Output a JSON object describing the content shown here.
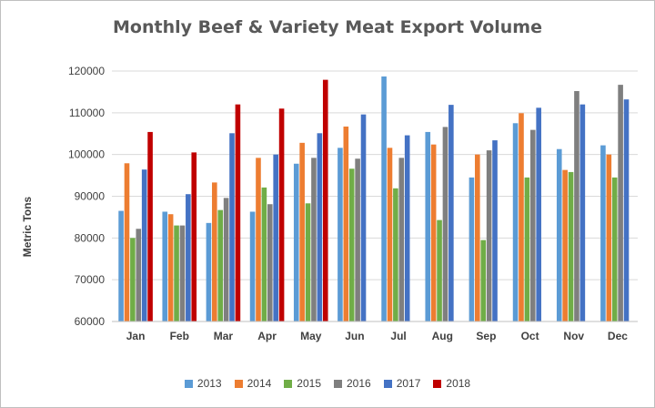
{
  "chart_data": {
    "type": "bar",
    "title": "Monthly Beef & Variety Meat Export Volume",
    "xlabel": "",
    "ylabel": "Metric Tons",
    "ylim": [
      60000,
      120000
    ],
    "yticks": [
      60000,
      70000,
      80000,
      90000,
      100000,
      110000,
      120000
    ],
    "grid": true,
    "legend_position": "bottom",
    "categories": [
      "Jan",
      "Feb",
      "Mar",
      "Apr",
      "May",
      "Jun",
      "Jul",
      "Aug",
      "Sep",
      "Oct",
      "Nov",
      "Dec"
    ],
    "series": [
      {
        "name": "2013",
        "color": "#5b9bd5",
        "values": [
          86500,
          86300,
          83600,
          86300,
          97800,
          101600,
          118700,
          105400,
          94500,
          107500,
          101300,
          102200
        ]
      },
      {
        "name": "2014",
        "color": "#ed7d31",
        "values": [
          97900,
          85700,
          93300,
          99200,
          102800,
          106700,
          101600,
          102400,
          100000,
          109900,
          96300,
          100000
        ]
      },
      {
        "name": "2015",
        "color": "#70ad47",
        "values": [
          80000,
          83000,
          86700,
          92100,
          88300,
          96600,
          91900,
          84300,
          79500,
          94500,
          95800,
          94500
        ]
      },
      {
        "name": "2016",
        "color": "#7f7f7f",
        "values": [
          82200,
          83000,
          89600,
          88100,
          99200,
          99000,
          99200,
          106600,
          101000,
          105900,
          115200,
          116700
        ]
      },
      {
        "name": "2017",
        "color": "#4472c4",
        "values": [
          96400,
          90500,
          105100,
          100000,
          105100,
          109600,
          104600,
          111900,
          103400,
          111200,
          112000,
          113200
        ]
      },
      {
        "name": "2018",
        "color": "#c00000",
        "values": [
          105400,
          100500,
          112000,
          111000,
          117900,
          null,
          null,
          null,
          null,
          null,
          null,
          null
        ]
      }
    ]
  }
}
